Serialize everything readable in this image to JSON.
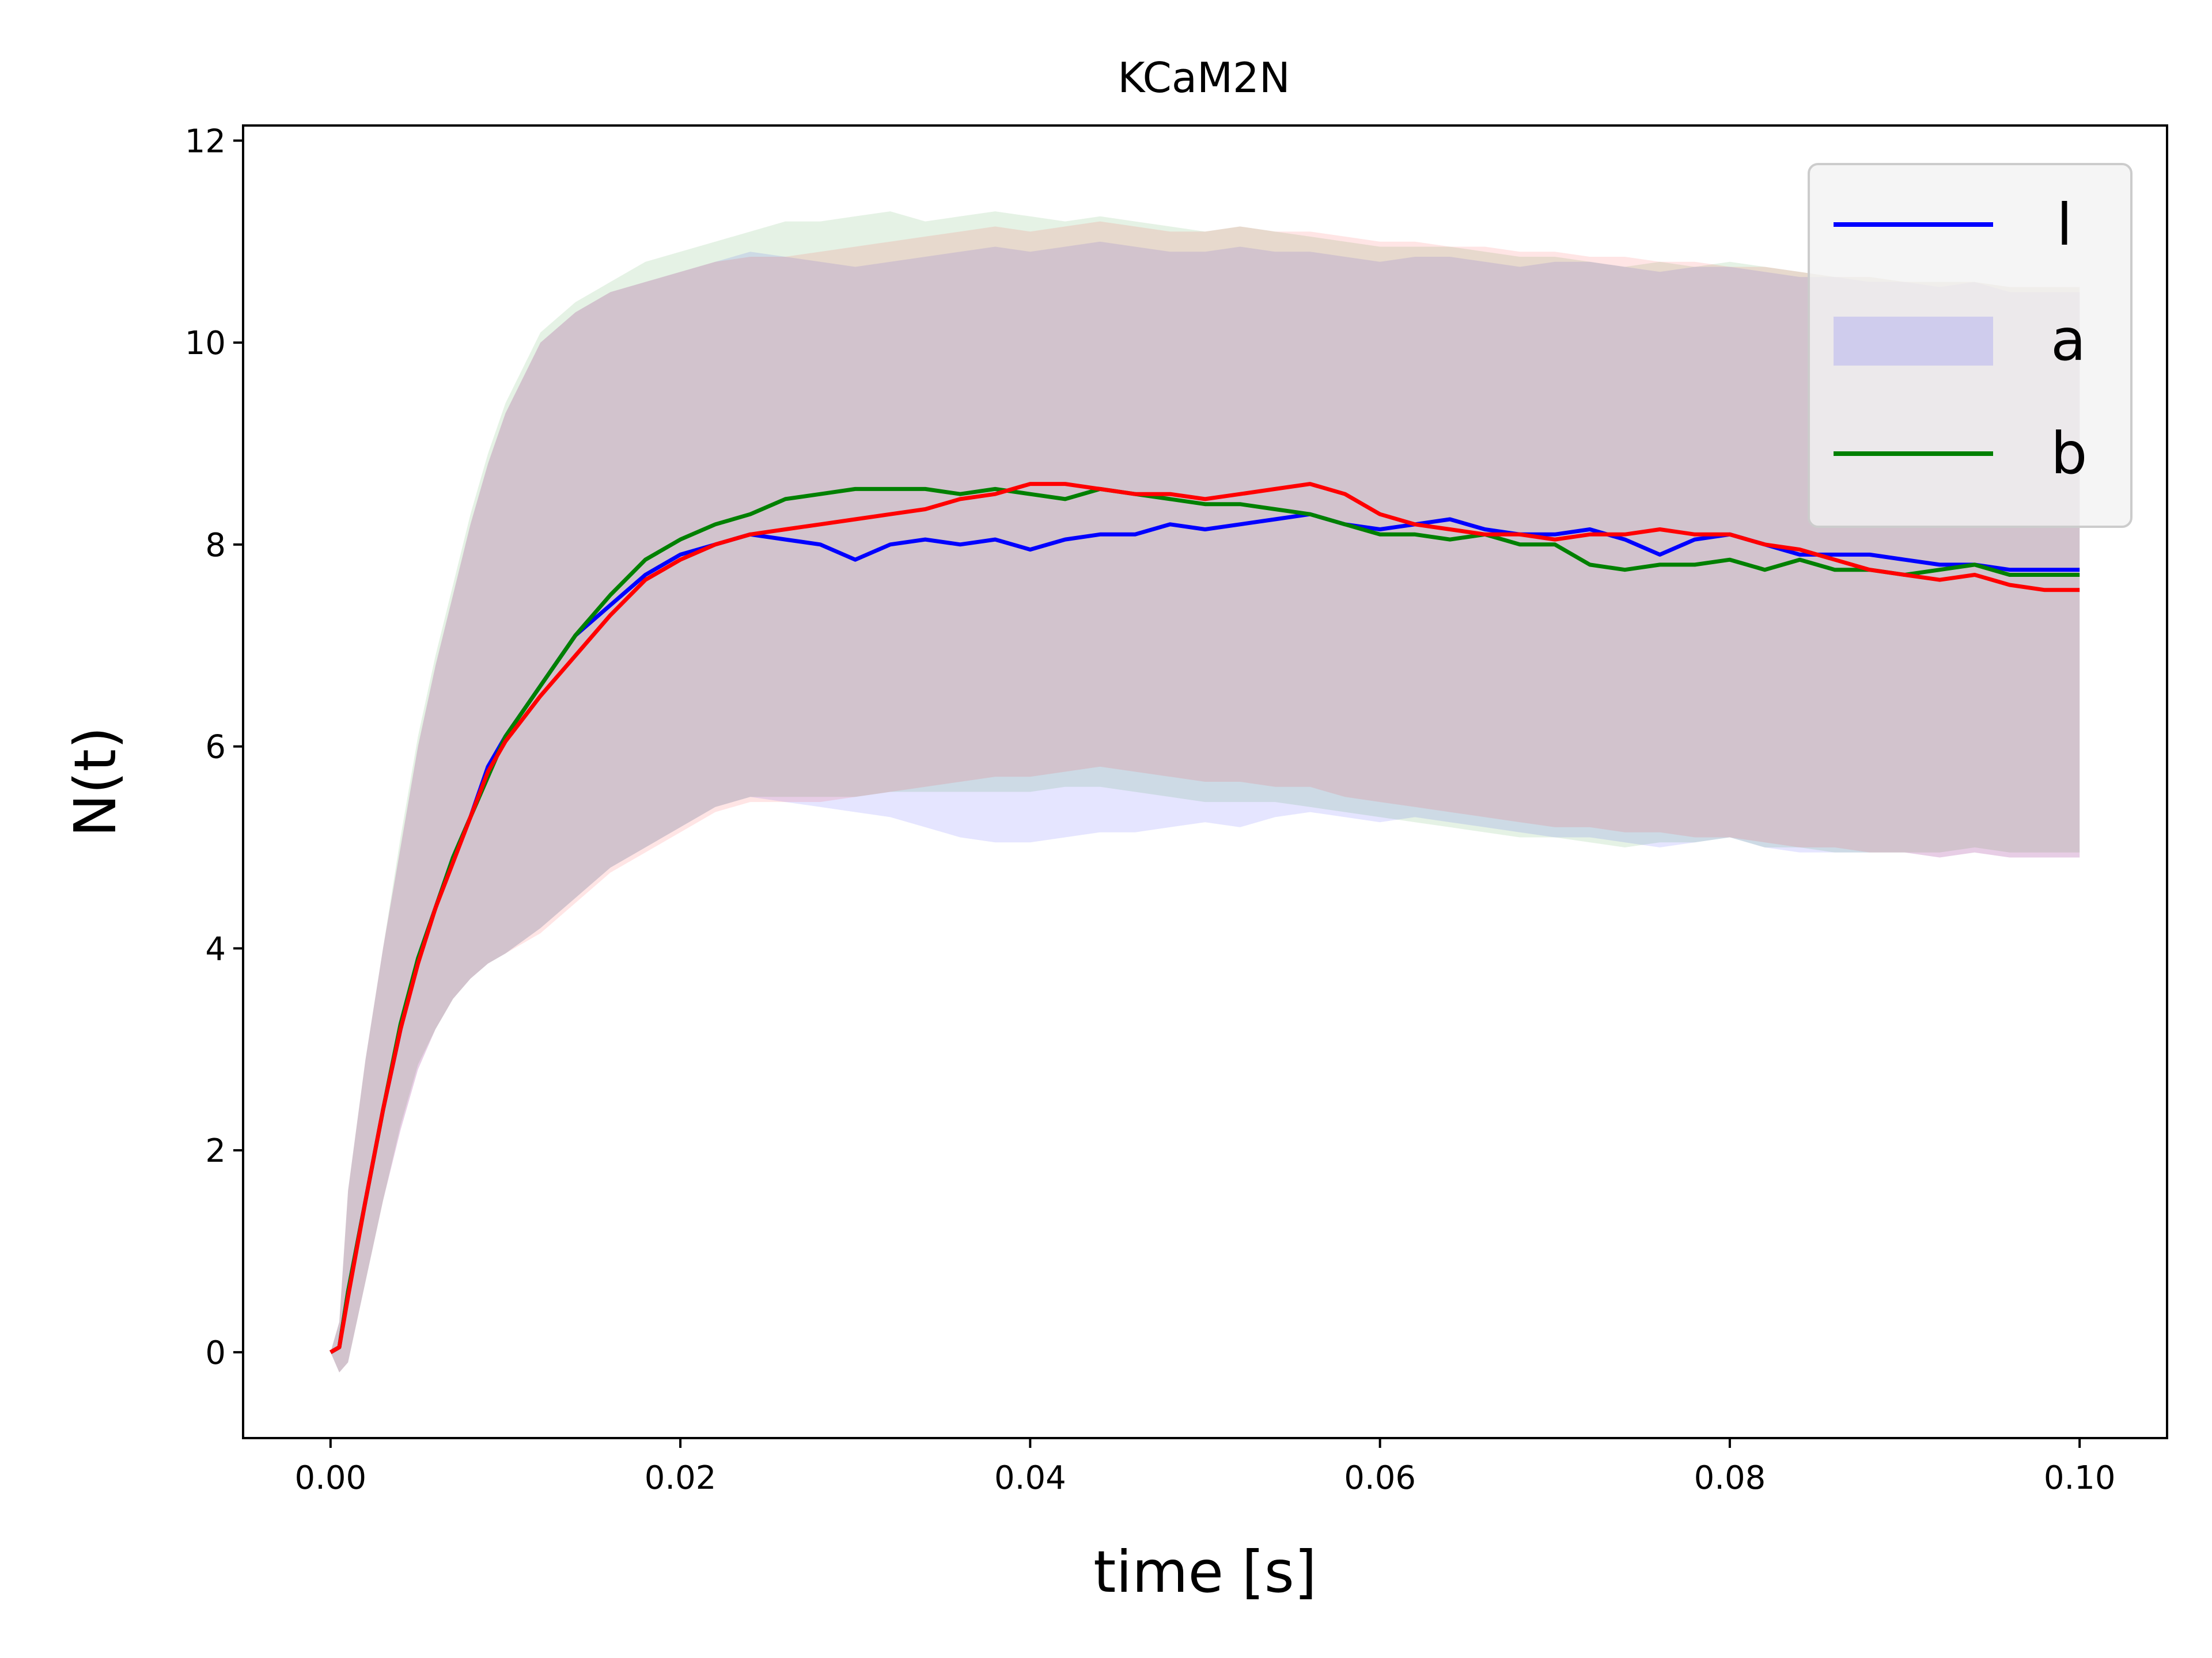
{
  "chart_data": {
    "type": "line",
    "title": "KCaM2N",
    "xlabel": "time [s]",
    "ylabel": "N(t)",
    "xlim": [
      -0.005,
      0.105
    ],
    "ylim": [
      -0.85,
      12.15
    ],
    "xticks": [
      0.0,
      0.02,
      0.04,
      0.06,
      0.08,
      0.1
    ],
    "xtick_labels": [
      "0.00",
      "0.02",
      "0.04",
      "0.06",
      "0.08",
      "0.10"
    ],
    "yticks": [
      0,
      2,
      4,
      6,
      8,
      10,
      12
    ],
    "ytick_labels": [
      "0",
      "2",
      "4",
      "6",
      "8",
      "10",
      "12"
    ],
    "grid": false,
    "legend_position": "top-right",
    "legend": [
      {
        "label": "l",
        "kind": "line",
        "color": "#0000ff"
      },
      {
        "label": "a",
        "kind": "band",
        "color": "#0000ff"
      },
      {
        "label": "b",
        "kind": "line",
        "color": "#008000"
      }
    ],
    "x": [
      0.0,
      0.0005,
      0.001,
      0.002,
      0.003,
      0.004,
      0.005,
      0.006,
      0.007,
      0.008,
      0.009,
      0.01,
      0.012,
      0.014,
      0.016,
      0.018,
      0.02,
      0.022,
      0.024,
      0.026,
      0.028,
      0.03,
      0.032,
      0.034,
      0.036,
      0.038,
      0.04,
      0.042,
      0.044,
      0.046,
      0.048,
      0.05,
      0.052,
      0.054,
      0.056,
      0.058,
      0.06,
      0.062,
      0.064,
      0.066,
      0.068,
      0.07,
      0.072,
      0.074,
      0.076,
      0.078,
      0.08,
      0.082,
      0.084,
      0.086,
      0.088,
      0.09,
      0.092,
      0.094,
      0.096,
      0.098,
      0.1
    ],
    "series": [
      {
        "color": "#0000ff",
        "values": [
          0.0,
          0.05,
          0.6,
          1.5,
          2.4,
          3.2,
          3.9,
          4.4,
          4.9,
          5.3,
          5.8,
          6.1,
          6.6,
          7.1,
          7.4,
          7.7,
          7.9,
          8.0,
          8.1,
          8.05,
          8.0,
          7.85,
          8.0,
          8.05,
          8.0,
          8.05,
          7.95,
          8.05,
          8.1,
          8.1,
          8.2,
          8.15,
          8.2,
          8.25,
          8.3,
          8.2,
          8.15,
          8.2,
          8.25,
          8.15,
          8.1,
          8.1,
          8.15,
          8.05,
          7.9,
          8.05,
          8.1,
          8.0,
          7.9,
          7.9,
          7.9,
          7.85,
          7.8,
          7.8,
          7.75,
          7.75,
          7.75
        ]
      },
      {
        "color": "#008000",
        "values": [
          0.0,
          0.05,
          0.6,
          1.5,
          2.4,
          3.25,
          3.9,
          4.4,
          4.9,
          5.3,
          5.7,
          6.1,
          6.6,
          7.1,
          7.5,
          7.85,
          8.05,
          8.2,
          8.3,
          8.45,
          8.5,
          8.55,
          8.55,
          8.55,
          8.5,
          8.55,
          8.5,
          8.45,
          8.55,
          8.5,
          8.45,
          8.4,
          8.4,
          8.35,
          8.3,
          8.2,
          8.1,
          8.1,
          8.05,
          8.1,
          8.0,
          8.0,
          7.8,
          7.75,
          7.8,
          7.8,
          7.85,
          7.75,
          7.85,
          7.75,
          7.75,
          7.7,
          7.75,
          7.8,
          7.7,
          7.7,
          7.7
        ]
      },
      {
        "color": "#ff0000",
        "values": [
          0.0,
          0.05,
          0.55,
          1.5,
          2.4,
          3.2,
          3.85,
          4.4,
          4.85,
          5.3,
          5.75,
          6.05,
          6.5,
          6.9,
          7.3,
          7.65,
          7.85,
          8.0,
          8.1,
          8.15,
          8.2,
          8.25,
          8.3,
          8.35,
          8.45,
          8.5,
          8.6,
          8.6,
          8.55,
          8.5,
          8.5,
          8.45,
          8.5,
          8.55,
          8.6,
          8.5,
          8.3,
          8.2,
          8.15,
          8.1,
          8.1,
          8.05,
          8.1,
          8.1,
          8.15,
          8.1,
          8.1,
          8.0,
          7.95,
          7.85,
          7.75,
          7.7,
          7.65,
          7.7,
          7.6,
          7.55,
          7.55
        ]
      }
    ],
    "bands": [
      {
        "color": "#0000ff",
        "lower": [
          0.0,
          -0.2,
          -0.1,
          0.7,
          1.5,
          2.2,
          2.8,
          3.2,
          3.5,
          3.7,
          3.85,
          3.95,
          4.2,
          4.5,
          4.8,
          5.0,
          5.2,
          5.4,
          5.5,
          5.45,
          5.4,
          5.35,
          5.3,
          5.2,
          5.1,
          5.05,
          5.05,
          5.1,
          5.15,
          5.15,
          5.2,
          5.25,
          5.2,
          5.3,
          5.35,
          5.3,
          5.25,
          5.3,
          5.25,
          5.2,
          5.15,
          5.1,
          5.1,
          5.05,
          5.0,
          5.05,
          5.1,
          5.0,
          4.95,
          4.95,
          4.95,
          4.95,
          4.9,
          4.95,
          4.9,
          4.9,
          4.9
        ],
        "upper": [
          0.0,
          0.3,
          1.6,
          2.9,
          4.0,
          5.0,
          6.0,
          6.8,
          7.5,
          8.2,
          8.8,
          9.3,
          10.0,
          10.3,
          10.5,
          10.6,
          10.7,
          10.8,
          10.9,
          10.85,
          10.8,
          10.75,
          10.8,
          10.85,
          10.9,
          10.95,
          10.9,
          10.95,
          11.0,
          10.95,
          10.9,
          10.9,
          10.95,
          10.9,
          10.9,
          10.85,
          10.8,
          10.85,
          10.85,
          10.8,
          10.75,
          10.8,
          10.8,
          10.75,
          10.7,
          10.75,
          10.75,
          10.7,
          10.65,
          10.65,
          10.6,
          10.6,
          10.55,
          10.6,
          10.5,
          10.5,
          10.5
        ]
      },
      {
        "color": "#008000",
        "lower": [
          0.0,
          -0.2,
          -0.1,
          0.7,
          1.5,
          2.25,
          2.85,
          3.2,
          3.5,
          3.7,
          3.85,
          3.95,
          4.2,
          4.5,
          4.8,
          5.0,
          5.2,
          5.4,
          5.5,
          5.5,
          5.5,
          5.5,
          5.55,
          5.55,
          5.55,
          5.55,
          5.55,
          5.6,
          5.6,
          5.55,
          5.5,
          5.45,
          5.45,
          5.45,
          5.4,
          5.35,
          5.3,
          5.25,
          5.2,
          5.15,
          5.1,
          5.1,
          5.05,
          5.0,
          5.05,
          5.05,
          5.1,
          5.0,
          5.0,
          4.95,
          4.95,
          4.95,
          4.95,
          5.0,
          4.95,
          4.95,
          4.95
        ],
        "upper": [
          0.0,
          0.3,
          1.6,
          2.9,
          4.0,
          5.1,
          6.1,
          6.9,
          7.6,
          8.3,
          8.9,
          9.4,
          10.1,
          10.4,
          10.6,
          10.8,
          10.9,
          11.0,
          11.1,
          11.2,
          11.2,
          11.25,
          11.3,
          11.2,
          11.25,
          11.3,
          11.25,
          11.2,
          11.25,
          11.2,
          11.15,
          11.1,
          11.15,
          11.1,
          11.05,
          11.0,
          10.95,
          10.95,
          10.95,
          10.9,
          10.85,
          10.85,
          10.8,
          10.75,
          10.8,
          10.75,
          10.8,
          10.75,
          10.7,
          10.65,
          10.65,
          10.6,
          10.6,
          10.6,
          10.55,
          10.55,
          10.55
        ]
      },
      {
        "color": "#ff0000",
        "lower": [
          0.0,
          -0.2,
          -0.1,
          0.7,
          1.5,
          2.2,
          2.8,
          3.2,
          3.5,
          3.7,
          3.85,
          3.95,
          4.15,
          4.45,
          4.75,
          4.95,
          5.15,
          5.35,
          5.45,
          5.45,
          5.45,
          5.5,
          5.55,
          5.6,
          5.65,
          5.7,
          5.7,
          5.75,
          5.8,
          5.75,
          5.7,
          5.65,
          5.65,
          5.6,
          5.6,
          5.5,
          5.45,
          5.4,
          5.35,
          5.3,
          5.25,
          5.2,
          5.2,
          5.15,
          5.15,
          5.1,
          5.1,
          5.05,
          5.0,
          5.0,
          4.95,
          4.95,
          4.9,
          4.95,
          4.9,
          4.9,
          4.9
        ],
        "upper": [
          0.0,
          0.3,
          1.6,
          2.9,
          4.0,
          5.0,
          6.0,
          6.8,
          7.5,
          8.2,
          8.8,
          9.3,
          10.0,
          10.3,
          10.5,
          10.6,
          10.7,
          10.8,
          10.85,
          10.85,
          10.9,
          10.95,
          11.0,
          11.05,
          11.1,
          11.15,
          11.1,
          11.15,
          11.2,
          11.15,
          11.1,
          11.1,
          11.15,
          11.1,
          11.1,
          11.05,
          11.0,
          11.0,
          10.95,
          10.95,
          10.9,
          10.9,
          10.85,
          10.85,
          10.8,
          10.8,
          10.75,
          10.75,
          10.7,
          10.65,
          10.65,
          10.6,
          10.6,
          10.6,
          10.55,
          10.55,
          10.55
        ]
      }
    ]
  }
}
